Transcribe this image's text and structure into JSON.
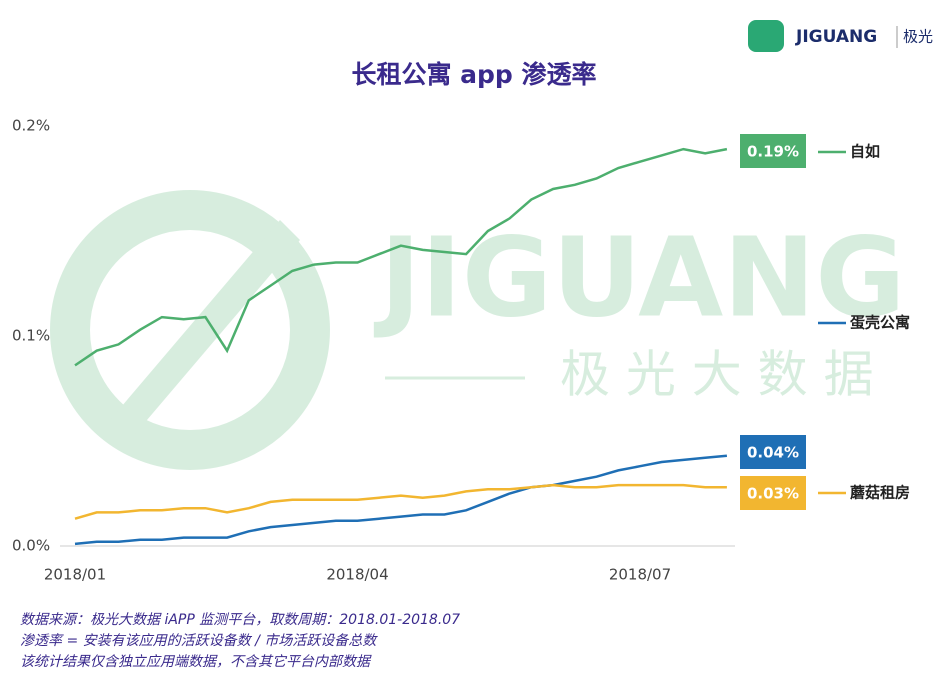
{
  "chart_data": {
    "type": "line",
    "title": "长租公寓 app 渗透率",
    "categories": [
      "2018/01",
      null,
      null,
      null,
      null,
      null,
      null,
      null,
      null,
      null,
      null,
      null,
      null,
      "2018/04",
      null,
      null,
      null,
      null,
      null,
      null,
      null,
      null,
      null,
      null,
      null,
      null,
      "2018/07",
      null,
      null,
      null,
      null
    ],
    "series": [
      {
        "name": "自如",
        "color": "#4daf6e",
        "values": [
          0.086,
          0.093,
          0.096,
          0.103,
          0.109,
          0.108,
          0.109,
          0.093,
          0.117,
          0.124,
          0.131,
          0.134,
          0.135,
          0.135,
          0.139,
          0.143,
          0.141,
          0.14,
          0.139,
          0.15,
          0.156,
          0.165,
          0.17,
          0.172,
          0.175,
          0.18,
          0.183,
          0.186,
          0.189,
          0.187,
          0.189
        ],
        "value_labels": [
          null,
          null,
          null,
          null,
          null,
          null,
          null,
          null,
          null,
          null,
          null,
          null,
          null,
          null,
          null,
          null,
          null,
          null,
          null,
          null,
          null,
          null,
          null,
          null,
          null,
          null,
          null,
          null,
          null,
          null,
          "0.19%"
        ]
      },
      {
        "name": "蛋壳公寓",
        "color": "#1f6fb5",
        "values": [
          0.001,
          0.002,
          0.002,
          0.003,
          0.003,
          0.004,
          0.004,
          0.004,
          0.007,
          0.009,
          0.01,
          0.011,
          0.012,
          0.012,
          0.013,
          0.014,
          0.015,
          0.015,
          0.017,
          0.021,
          0.025,
          0.028,
          0.029,
          0.031,
          0.033,
          0.036,
          0.038,
          0.04,
          0.041,
          0.042,
          0.043
        ],
        "value_labels": [
          null,
          null,
          null,
          null,
          null,
          null,
          null,
          null,
          null,
          null,
          null,
          null,
          null,
          null,
          null,
          null,
          null,
          null,
          null,
          null,
          null,
          null,
          null,
          null,
          null,
          null,
          null,
          null,
          null,
          null,
          "0.04%"
        ]
      },
      {
        "name": "蘑菇租房",
        "color": "#f2b630",
        "values": [
          0.013,
          0.016,
          0.016,
          0.017,
          0.017,
          0.018,
          0.018,
          0.016,
          0.018,
          0.021,
          0.022,
          0.022,
          0.022,
          0.022,
          0.023,
          0.024,
          0.023,
          0.024,
          0.026,
          0.027,
          0.027,
          0.028,
          0.029,
          0.028,
          0.028,
          0.029,
          0.029,
          0.029,
          0.029,
          0.028,
          0.028
        ],
        "value_labels": [
          null,
          null,
          null,
          null,
          null,
          null,
          null,
          null,
          null,
          null,
          null,
          null,
          null,
          null,
          null,
          null,
          null,
          null,
          null,
          null,
          null,
          null,
          null,
          null,
          null,
          null,
          null,
          null,
          null,
          null,
          "0.03%"
        ]
      }
    ],
    "ylim": [
      0,
      0.2
    ],
    "yticks": [
      {
        "value": 0,
        "label": "0.0%"
      },
      {
        "value": 0.1,
        "label": "0.1%"
      },
      {
        "value": 0.2,
        "label": "0.2%"
      }
    ]
  },
  "logo": {
    "brand": "JIGUANG",
    "cn": "极光"
  },
  "watermark": {
    "brand": "JIGUANG",
    "cn": "极 光 大 数 据"
  },
  "footnotes": [
    "数据来源：极光大数据 iAPP 监测平台，取数周期：2018.01-2018.07",
    "渗透率 = 安装有该应用的活跃设备数 / 市场活跃设备总数",
    "该统计结果仅含独立应用端数据，不含其它平台内部数据"
  ]
}
